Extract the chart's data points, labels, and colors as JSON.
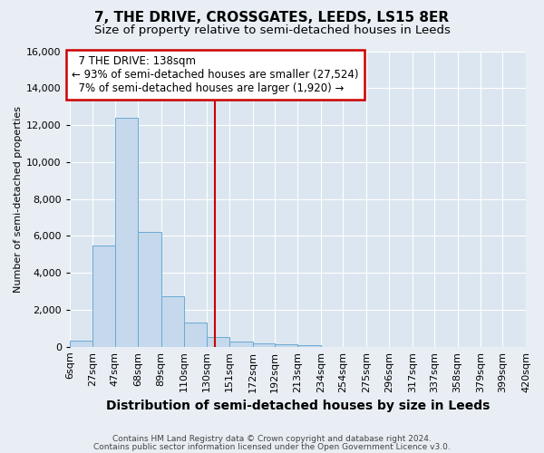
{
  "title": "7, THE DRIVE, CROSSGATES, LEEDS, LS15 8ER",
  "subtitle": "Size of property relative to semi-detached houses in Leeds",
  "xlabel": "Distribution of semi-detached houses by size in Leeds",
  "ylabel": "Number of semi-detached properties",
  "footer_line1": "Contains HM Land Registry data © Crown copyright and database right 2024.",
  "footer_line2": "Contains public sector information licensed under the Open Government Licence v3.0.",
  "annotation_title": "7 THE DRIVE: 138sqm",
  "annotation_line1": "← 93% of semi-detached houses are smaller (27,524)",
  "annotation_line2": "7% of semi-detached houses are larger (1,920) →",
  "bins": [
    6,
    27,
    47,
    68,
    89,
    110,
    130,
    151,
    172,
    192,
    213,
    234,
    254,
    275,
    296,
    317,
    337,
    358,
    379,
    399,
    420
  ],
  "bin_labels": [
    "6sqm",
    "27sqm",
    "47sqm",
    "68sqm",
    "89sqm",
    "110sqm",
    "130sqm",
    "151sqm",
    "172sqm",
    "192sqm",
    "213sqm",
    "234sqm",
    "254sqm",
    "275sqm",
    "296sqm",
    "317sqm",
    "337sqm",
    "358sqm",
    "379sqm",
    "399sqm",
    "420sqm"
  ],
  "values": [
    320,
    5500,
    12400,
    6200,
    2750,
    1320,
    540,
    280,
    200,
    130,
    80,
    0,
    0,
    0,
    0,
    0,
    0,
    0,
    0,
    0
  ],
  "bar_color": "#c5d8ec",
  "bar_edge_color": "#6aaad4",
  "vline_color": "#cc0000",
  "vline_x": 138,
  "annotation_box_color": "#ffffff",
  "annotation_box_edge_color": "#cc0000",
  "background_color": "#e8eef4",
  "plot_background_color": "#dce6f0",
  "grid_color": "#ffffff",
  "ylim": [
    0,
    16000
  ],
  "yticks": [
    0,
    2000,
    4000,
    6000,
    8000,
    10000,
    12000,
    14000,
    16000
  ],
  "title_fontsize": 11,
  "subtitle_fontsize": 9.5,
  "ylabel_fontsize": 8,
  "xlabel_fontsize": 10,
  "tick_fontsize": 8,
  "footer_fontsize": 6.5,
  "annotation_fontsize": 8.5
}
